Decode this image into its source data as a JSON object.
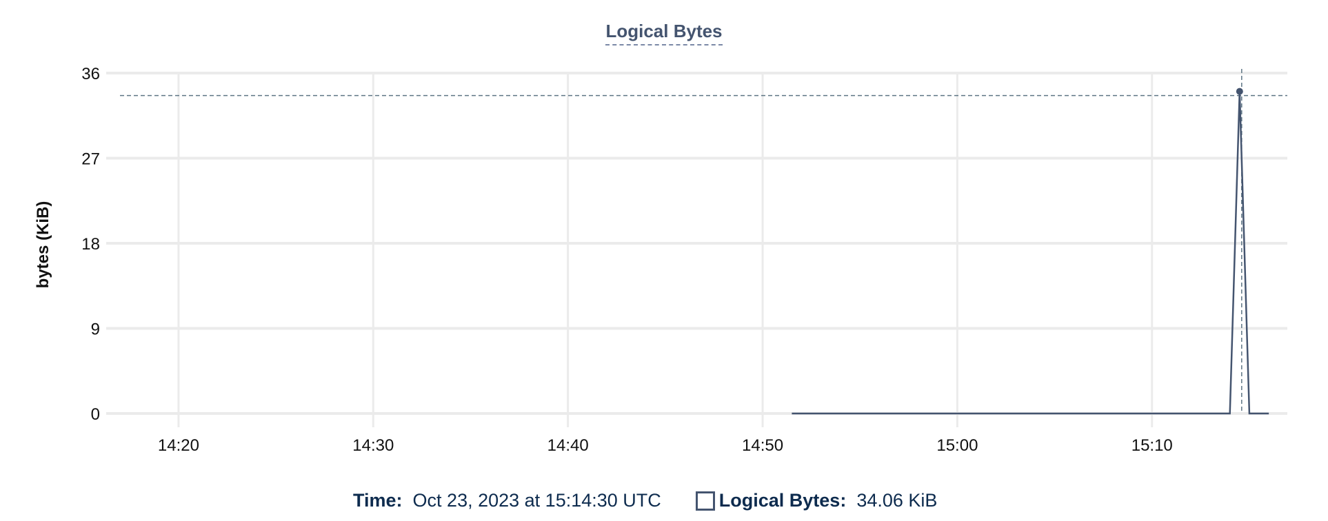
{
  "chart_data": {
    "type": "line",
    "title": "Logical Bytes",
    "ylabel": "bytes (KiB)",
    "xlabel": "",
    "ylim": [
      0,
      36
    ],
    "yticks": [
      "0",
      "9",
      "18",
      "27",
      "36"
    ],
    "xlim": [
      "14:16:17",
      "15:16:57"
    ],
    "xticks": [
      "14:20",
      "14:30",
      "14:40",
      "14:50",
      "15:00",
      "15:10"
    ],
    "grid": true,
    "series": [
      {
        "name": "Logical Bytes",
        "color": "#44546f",
        "points": [
          [
            "14:51:30",
            0
          ],
          [
            "15:14:00",
            0
          ],
          [
            "15:14:30",
            34.06
          ],
          [
            "15:15:00",
            0
          ],
          [
            "15:16:00",
            0
          ]
        ]
      }
    ],
    "crosshair": {
      "x": "15:14:30",
      "y": 34.06
    }
  },
  "tooltip": {
    "time_label": "Time:",
    "time_value": "Oct 23, 2023 at 15:14:30 UTC",
    "series_label": "Logical Bytes:",
    "series_value": "34.06 KiB"
  }
}
